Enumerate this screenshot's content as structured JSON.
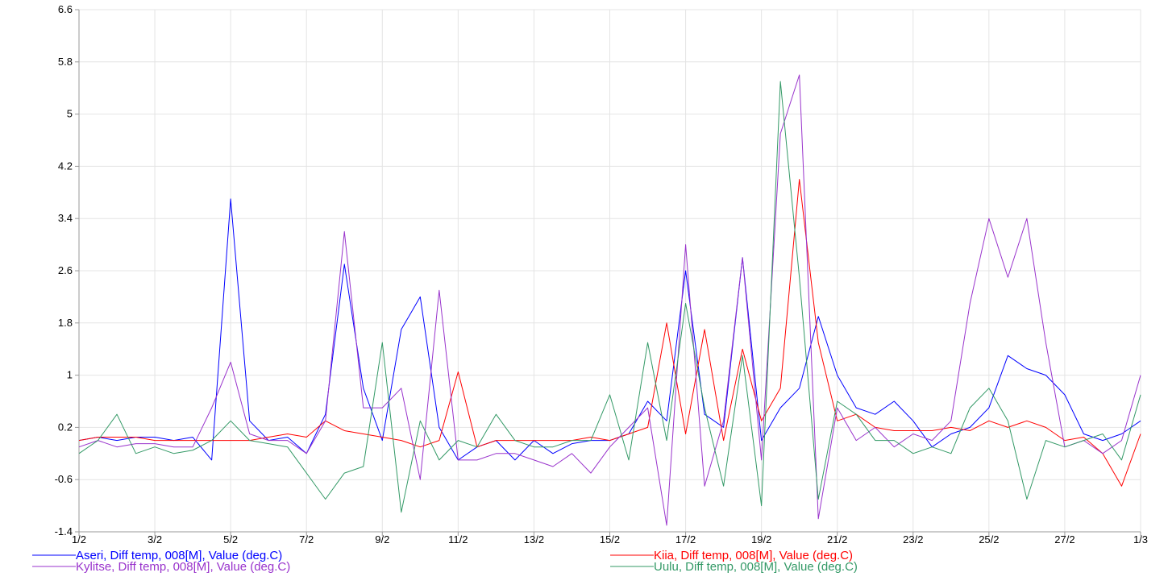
{
  "chart_data": {
    "type": "line",
    "x": [
      0,
      0.5,
      1,
      1.5,
      2,
      2.5,
      3,
      3.5,
      4,
      4.5,
      5,
      5.5,
      6,
      6.5,
      7,
      7.5,
      8,
      8.5,
      9,
      9.5,
      10,
      10.5,
      11,
      11.5,
      12,
      12.5,
      13,
      13.5,
      14,
      14.5,
      15,
      15.5,
      16,
      16.5,
      17,
      17.5,
      18,
      18.5,
      19,
      19.5,
      20,
      20.5,
      21,
      21.5,
      22,
      22.5,
      23,
      23.5,
      24,
      24.5,
      25,
      25.5,
      26,
      26.5,
      27,
      27.5,
      28
    ],
    "xlim": [
      0,
      28
    ],
    "xticks": [
      {
        "value": 0,
        "label": "1/2"
      },
      {
        "value": 2,
        "label": "3/2"
      },
      {
        "value": 4,
        "label": "5/2"
      },
      {
        "value": 6,
        "label": "7/2"
      },
      {
        "value": 8,
        "label": "9/2"
      },
      {
        "value": 10,
        "label": "11/2"
      },
      {
        "value": 12,
        "label": "13/2"
      },
      {
        "value": 14,
        "label": "15/2"
      },
      {
        "value": 16,
        "label": "17/2"
      },
      {
        "value": 18,
        "label": "19/2"
      },
      {
        "value": 20,
        "label": "21/2"
      },
      {
        "value": 22,
        "label": "23/2"
      },
      {
        "value": 24,
        "label": "25/2"
      },
      {
        "value": 26,
        "label": "27/2"
      },
      {
        "value": 28,
        "label": "1/3"
      }
    ],
    "ylim": [
      -1.4,
      6.6
    ],
    "yticks": [
      -1.4,
      -0.6,
      0.2,
      1,
      1.8,
      2.6,
      3.4,
      4.2,
      5,
      5.8,
      6.6
    ],
    "grid": true,
    "series": [
      {
        "name": "Aseri, Diff temp, 008[M], Value (deg.C)",
        "color": "#0000ff",
        "values": [
          0.0,
          0.05,
          0.0,
          0.05,
          0.05,
          0.0,
          0.05,
          -0.3,
          3.7,
          0.3,
          0.0,
          0.05,
          -0.2,
          0.4,
          2.7,
          0.8,
          0.0,
          1.7,
          2.2,
          0.2,
          -0.3,
          -0.1,
          0.0,
          -0.3,
          0.0,
          -0.2,
          -0.05,
          0.0,
          0.0,
          0.1,
          0.6,
          0.3,
          2.6,
          0.4,
          0.2,
          2.8,
          0.0,
          0.5,
          0.8,
          1.9,
          1.0,
          0.5,
          0.4,
          0.6,
          0.3,
          -0.1,
          0.1,
          0.2,
          0.5,
          1.3,
          1.1,
          1.0,
          0.7,
          0.1,
          0.0,
          0.1,
          0.3
        ]
      },
      {
        "name": "Kiia, Diff temp, 008[M], Value (deg.C)",
        "color": "#ff0000",
        "values": [
          0.0,
          0.05,
          0.05,
          0.05,
          0.0,
          0.0,
          0.0,
          0.0,
          0.0,
          0.0,
          0.05,
          0.1,
          0.05,
          0.3,
          0.15,
          0.1,
          0.05,
          0.0,
          -0.1,
          0.0,
          1.05,
          -0.1,
          0.0,
          0.0,
          0.0,
          0.0,
          0.0,
          0.05,
          0.0,
          0.1,
          0.2,
          1.8,
          0.1,
          1.7,
          0.0,
          1.4,
          0.3,
          0.8,
          4.0,
          1.5,
          0.3,
          0.4,
          0.2,
          0.15,
          0.15,
          0.15,
          0.2,
          0.15,
          0.3,
          0.2,
          0.3,
          0.2,
          0.0,
          0.05,
          -0.2,
          -0.7,
          0.1
        ]
      },
      {
        "name": "Kylitse, Diff temp, 008[M], Value (deg.C)",
        "color": "#9933cc",
        "values": [
          -0.1,
          0.0,
          -0.1,
          -0.05,
          -0.05,
          -0.1,
          -0.1,
          0.5,
          1.2,
          0.1,
          0.0,
          0.0,
          -0.2,
          0.3,
          3.2,
          0.5,
          0.5,
          0.8,
          -0.6,
          2.3,
          -0.3,
          -0.3,
          -0.2,
          -0.2,
          -0.3,
          -0.4,
          -0.2,
          -0.5,
          -0.1,
          0.2,
          0.5,
          -1.3,
          3.0,
          -0.7,
          0.3,
          2.8,
          -0.3,
          4.7,
          5.6,
          -1.2,
          0.5,
          0.0,
          0.2,
          -0.1,
          0.1,
          0.0,
          0.3,
          2.1,
          3.4,
          2.5,
          3.4,
          1.5,
          -0.1,
          0.0,
          -0.2,
          0.0,
          1.0
        ]
      },
      {
        "name": "Uulu, Diff temp, 008[M], Value (deg.C)",
        "color": "#339966",
        "values": [
          -0.2,
          0.0,
          0.4,
          -0.2,
          -0.1,
          -0.2,
          -0.15,
          0.0,
          0.3,
          0.0,
          -0.05,
          -0.1,
          -0.5,
          -0.9,
          -0.5,
          -0.4,
          1.5,
          -1.1,
          0.3,
          -0.3,
          0.0,
          -0.1,
          0.4,
          0.0,
          -0.1,
          -0.1,
          0.0,
          0.0,
          0.7,
          -0.3,
          1.5,
          0.0,
          2.1,
          0.5,
          -0.7,
          1.3,
          -1.0,
          5.5,
          2.5,
          -0.9,
          0.6,
          0.4,
          0.0,
          0.0,
          -0.2,
          -0.1,
          -0.2,
          0.5,
          0.8,
          0.3,
          -0.9,
          0.0,
          -0.1,
          0.0,
          0.1,
          -0.3,
          0.7
        ]
      }
    ]
  }
}
